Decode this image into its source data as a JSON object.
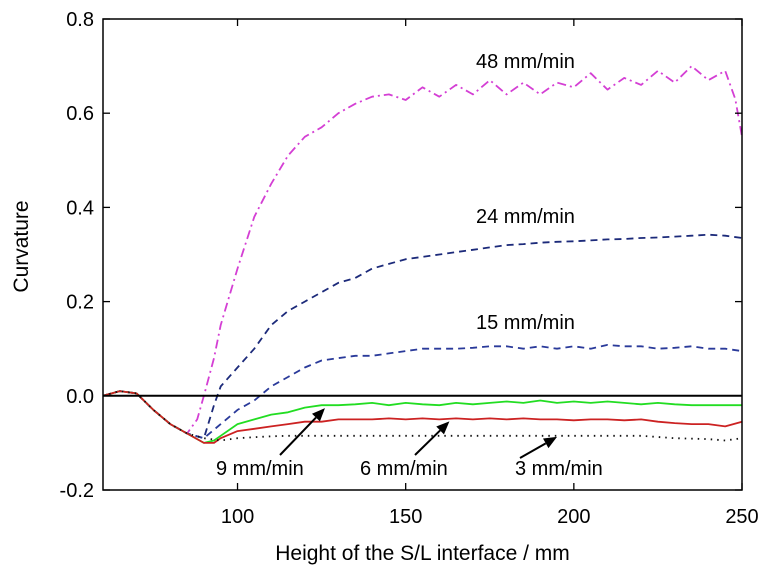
{
  "chart_data": {
    "type": "line",
    "title": "",
    "xlabel": "Height of the S/L interface / mm",
    "ylabel": "Curvature",
    "xlim": [
      60,
      250
    ],
    "ylim": [
      -0.2,
      0.8
    ],
    "x_ticks": [
      100,
      150,
      200,
      250
    ],
    "x_tick_labels": [
      "100",
      "150",
      "200",
      "250"
    ],
    "y_ticks": [
      -0.2,
      0.0,
      0.2,
      0.4,
      0.6,
      0.8
    ],
    "y_tick_labels": [
      "-0.2",
      "0.0",
      "0.2",
      "0.4",
      "0.6",
      "0.8"
    ],
    "grid": false,
    "legend": "inline labels",
    "reference_line": {
      "y": 0.0
    },
    "series": [
      {
        "name": "48 mm/min",
        "label": "48 mm/min",
        "color": "#d43fd4",
        "dash": "dashdot",
        "x": [
          60,
          65,
          70,
          75,
          80,
          85,
          88,
          90,
          93,
          95,
          100,
          105,
          110,
          115,
          120,
          125,
          130,
          135,
          140,
          145,
          150,
          155,
          160,
          165,
          170,
          175,
          180,
          185,
          190,
          195,
          200,
          205,
          210,
          215,
          220,
          225,
          230,
          235,
          240,
          245,
          248,
          250
        ],
        "values": [
          0.0,
          0.01,
          0.005,
          -0.03,
          -0.06,
          -0.08,
          -0.05,
          0.0,
          0.08,
          0.15,
          0.27,
          0.38,
          0.45,
          0.51,
          0.55,
          0.57,
          0.6,
          0.62,
          0.635,
          0.64,
          0.628,
          0.655,
          0.635,
          0.66,
          0.64,
          0.67,
          0.64,
          0.665,
          0.64,
          0.665,
          0.655,
          0.685,
          0.65,
          0.675,
          0.66,
          0.69,
          0.665,
          0.7,
          0.67,
          0.69,
          0.63,
          0.55
        ]
      },
      {
        "name": "24 mm/min",
        "label": "24 mm/min",
        "color": "#1c2a7a",
        "dash": "dash",
        "x": [
          60,
          65,
          70,
          75,
          80,
          85,
          90,
          93,
          95,
          100,
          105,
          110,
          115,
          120,
          125,
          130,
          135,
          140,
          145,
          150,
          155,
          160,
          165,
          170,
          175,
          180,
          185,
          190,
          195,
          200,
          205,
          210,
          215,
          220,
          225,
          230,
          235,
          240,
          245,
          250
        ],
        "values": [
          0.0,
          0.01,
          0.005,
          -0.03,
          -0.06,
          -0.08,
          -0.09,
          -0.02,
          0.02,
          0.06,
          0.1,
          0.15,
          0.18,
          0.2,
          0.22,
          0.24,
          0.25,
          0.27,
          0.28,
          0.29,
          0.295,
          0.3,
          0.305,
          0.31,
          0.315,
          0.32,
          0.322,
          0.325,
          0.327,
          0.328,
          0.33,
          0.332,
          0.333,
          0.335,
          0.336,
          0.338,
          0.34,
          0.342,
          0.34,
          0.335
        ]
      },
      {
        "name": "15 mm/min",
        "label": "15 mm/min",
        "color": "#2a3a9a",
        "dash": "dash",
        "x": [
          60,
          65,
          70,
          75,
          80,
          85,
          90,
          95,
          100,
          105,
          110,
          115,
          120,
          125,
          130,
          135,
          140,
          145,
          150,
          155,
          160,
          165,
          170,
          175,
          180,
          185,
          190,
          195,
          200,
          205,
          210,
          215,
          220,
          225,
          230,
          235,
          240,
          245,
          250
        ],
        "values": [
          0.0,
          0.01,
          0.005,
          -0.03,
          -0.06,
          -0.08,
          -0.09,
          -0.06,
          -0.03,
          -0.01,
          0.02,
          0.04,
          0.06,
          0.075,
          0.08,
          0.085,
          0.085,
          0.09,
          0.095,
          0.1,
          0.1,
          0.1,
          0.102,
          0.105,
          0.105,
          0.1,
          0.105,
          0.1,
          0.105,
          0.1,
          0.108,
          0.105,
          0.105,
          0.1,
          0.102,
          0.105,
          0.1,
          0.1,
          0.095
        ]
      },
      {
        "name": "9 mm/min",
        "label": "9 mm/min",
        "color": "#22dd22",
        "dash": "solid",
        "x": [
          60,
          65,
          70,
          75,
          80,
          85,
          90,
          93,
          95,
          100,
          105,
          110,
          115,
          120,
          125,
          130,
          135,
          140,
          145,
          150,
          155,
          160,
          165,
          170,
          175,
          180,
          185,
          190,
          195,
          200,
          205,
          210,
          215,
          220,
          225,
          230,
          235,
          240,
          245,
          250
        ],
        "values": [
          0.0,
          0.01,
          0.005,
          -0.03,
          -0.06,
          -0.08,
          -0.1,
          -0.095,
          -0.085,
          -0.06,
          -0.05,
          -0.04,
          -0.035,
          -0.025,
          -0.02,
          -0.02,
          -0.018,
          -0.015,
          -0.02,
          -0.015,
          -0.018,
          -0.02,
          -0.015,
          -0.018,
          -0.015,
          -0.012,
          -0.015,
          -0.01,
          -0.015,
          -0.012,
          -0.015,
          -0.012,
          -0.015,
          -0.018,
          -0.015,
          -0.018,
          -0.02,
          -0.02,
          -0.02,
          -0.02
        ]
      },
      {
        "name": "6 mm/min",
        "label": "6 mm/min",
        "color": "#cc2222",
        "dash": "solid",
        "x": [
          60,
          65,
          70,
          75,
          80,
          85,
          90,
          93,
          95,
          100,
          105,
          110,
          115,
          120,
          125,
          130,
          135,
          140,
          145,
          150,
          155,
          160,
          165,
          170,
          175,
          180,
          185,
          190,
          195,
          200,
          205,
          210,
          215,
          220,
          225,
          230,
          235,
          240,
          245,
          250
        ],
        "values": [
          0.0,
          0.01,
          0.005,
          -0.03,
          -0.06,
          -0.08,
          -0.1,
          -0.1,
          -0.09,
          -0.075,
          -0.07,
          -0.065,
          -0.06,
          -0.055,
          -0.055,
          -0.05,
          -0.05,
          -0.05,
          -0.048,
          -0.05,
          -0.048,
          -0.05,
          -0.048,
          -0.05,
          -0.048,
          -0.05,
          -0.048,
          -0.05,
          -0.05,
          -0.052,
          -0.05,
          -0.05,
          -0.052,
          -0.05,
          -0.055,
          -0.058,
          -0.06,
          -0.06,
          -0.065,
          -0.055
        ]
      },
      {
        "name": "3 mm/min",
        "label": "3 mm/min",
        "color": "#111111",
        "dash": "dot",
        "x": [
          60,
          65,
          70,
          75,
          80,
          85,
          90,
          95,
          100,
          105,
          110,
          115,
          120,
          125,
          130,
          140,
          150,
          160,
          170,
          180,
          190,
          200,
          210,
          220,
          230,
          240,
          245,
          250
        ],
        "values": [
          0.0,
          0.01,
          0.005,
          -0.03,
          -0.06,
          -0.08,
          -0.09,
          -0.095,
          -0.09,
          -0.088,
          -0.086,
          -0.085,
          -0.085,
          -0.085,
          -0.085,
          -0.085,
          -0.085,
          -0.085,
          -0.085,
          -0.085,
          -0.085,
          -0.085,
          -0.085,
          -0.085,
          -0.09,
          -0.092,
          -0.095,
          -0.09
        ]
      }
    ],
    "annotations": [
      {
        "text": "48 mm/min",
        "series": "48 mm/min"
      },
      {
        "text": "24 mm/min",
        "series": "24 mm/min"
      },
      {
        "text": "15 mm/min",
        "series": "15 mm/min"
      },
      {
        "text": "9 mm/min",
        "series": "9 mm/min",
        "arrow_to": [
          126,
          -0.022
        ]
      },
      {
        "text": "6 mm/min",
        "series": "6 mm/min",
        "arrow_to": [
          163,
          -0.05
        ]
      },
      {
        "text": "3 mm/min",
        "series": "3 mm/min",
        "arrow_to": [
          195,
          -0.083
        ]
      }
    ]
  }
}
